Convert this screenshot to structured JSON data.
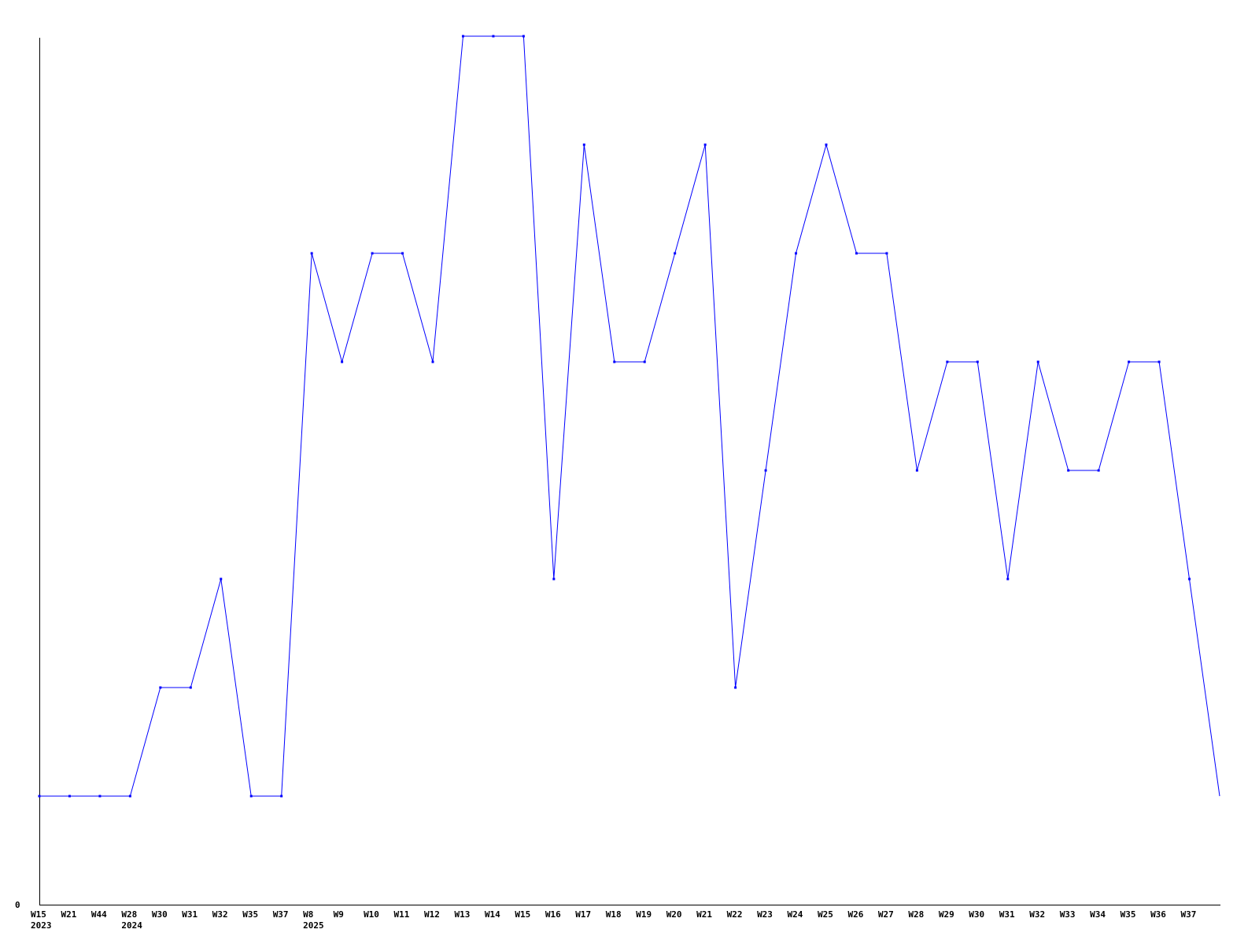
{
  "chart_data": {
    "type": "line",
    "title": "",
    "xlabel": "",
    "ylabel": "",
    "categories": [
      "W15",
      "W21",
      "W44",
      "W28",
      "W30",
      "W31",
      "W32",
      "W35",
      "W37",
      "W8",
      "W9",
      "W10",
      "W11",
      "W12",
      "W13",
      "W14",
      "W15",
      "W16",
      "W17",
      "W18",
      "W19",
      "W20",
      "W21",
      "W22",
      "W23",
      "W24",
      "W25",
      "W26",
      "W27",
      "W28",
      "W29",
      "W30",
      "W31",
      "W32",
      "W33",
      "W34",
      "W35",
      "W36",
      "W37",
      ""
    ],
    "year_labels": [
      {
        "index": 0,
        "label": "2023"
      },
      {
        "index": 3,
        "label": "2024"
      },
      {
        "index": 9,
        "label": "2025"
      }
    ],
    "values": [
      1,
      1,
      1,
      1,
      2,
      2,
      3,
      1,
      1,
      6,
      5,
      6,
      6,
      5,
      8,
      8,
      8,
      3,
      7,
      5,
      5,
      6,
      7,
      2,
      4,
      6,
      7,
      6,
      6,
      4,
      5,
      5,
      3,
      5,
      4,
      4,
      5,
      5,
      3,
      1
    ],
    "y_tick_labels": [
      "0"
    ],
    "ylim": [
      0,
      8
    ],
    "grid": false,
    "line_color": "#0000ff",
    "axis_color": "#000000"
  }
}
